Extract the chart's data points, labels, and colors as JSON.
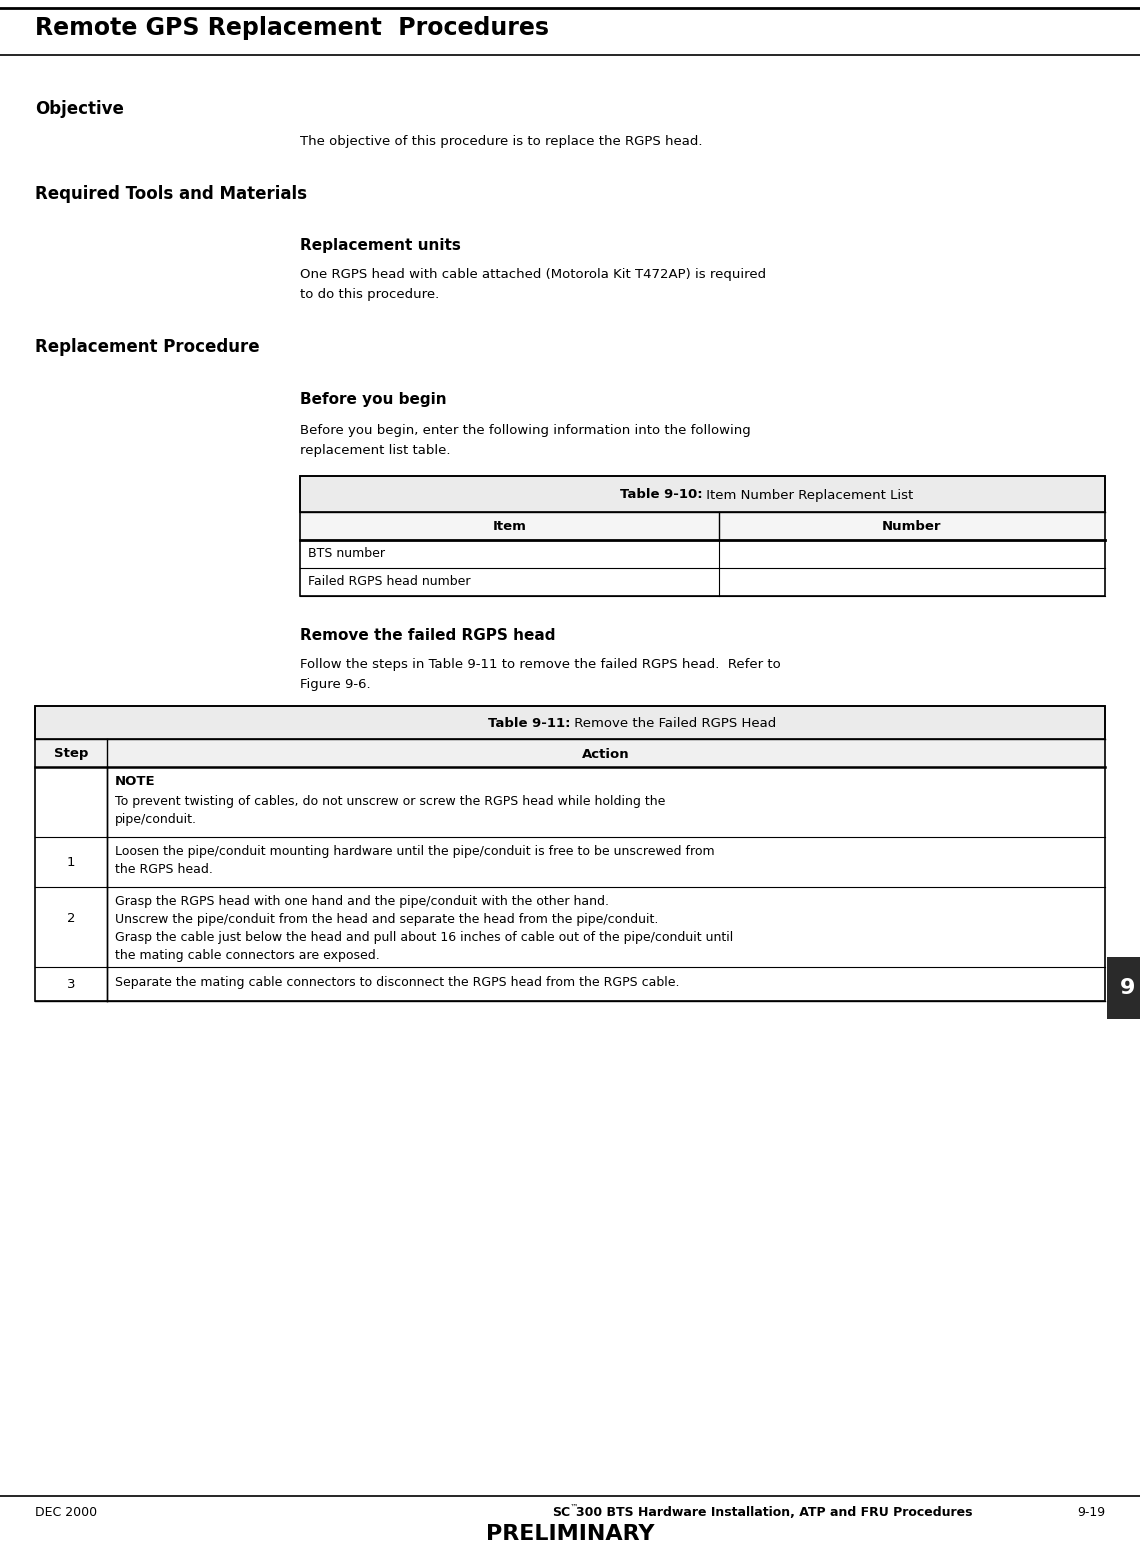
{
  "page_title": "Remote GPS Replacement  Procedures",
  "section1_label": "Objective",
  "section1_text": "The objective of this procedure is to replace the RGPS head.",
  "section2_label": "Required Tools and Materials",
  "subsection2_title": "Replacement units",
  "subsection2_text1": "One RGPS head with cable attached (Motorola Kit T472AP) is required",
  "subsection2_text2": "to do this procedure.",
  "section3_label": "Replacement Procedure",
  "subsection3_title": "Before you begin",
  "subsection3_text1": "Before you begin, enter the following information into the following",
  "subsection3_text2": "replacement list table.",
  "table1_title_bold": "Table 9-10:",
  "table1_title_normal": " Item Number Replacement List",
  "table1_col1": "Item",
  "table1_col2": "Number",
  "table1_row1": "BTS number",
  "table1_row2": "Failed RGPS head number",
  "subsection4_title": "Remove the failed RGPS head",
  "subsection4_text1": "Follow the steps in Table 9-11 to remove the failed RGPS head.  Refer to",
  "subsection4_text2": "Figure 9-6.",
  "table2_title_bold": "Table 9-11:",
  "table2_title_normal": " Remove the Failed RGPS Head",
  "table2_col1": "Step",
  "table2_col2": "Action",
  "table2_note_header": "NOTE",
  "table2_note_line1": "To prevent twisting of cables, do not unscrew or screw the RGPS head while holding the",
  "table2_note_line2": "pipe/conduit.",
  "table2_row1_step": "1",
  "table2_row1_line1": "Loosen the pipe/conduit mounting hardware until the pipe/conduit is free to be unscrewed from",
  "table2_row1_line2": "the RGPS head.",
  "table2_row2_step": "2",
  "table2_row2_line1": "Grasp the RGPS head with one hand and the pipe/conduit with the other hand.",
  "table2_row2_line2": "Unscrew the pipe/conduit from the head and separate the head from the pipe/conduit.",
  "table2_row2_line3": "Grasp the cable just below the head and pull about 16 inches of cable out of the pipe/conduit until",
  "table2_row2_line4": "the mating cable connectors are exposed.",
  "table2_row3_step": "3",
  "table2_row3_text": "Separate the mating cable connectors to disconnect the RGPS head from the RGPS cable.",
  "footer_left": "DEC 2000",
  "footer_center_bold": "SC",
  "footer_center_tm": "™",
  "footer_center_normal": "300 BTS Hardware Installation, ATP and FRU Procedures",
  "footer_center_prelim": "PRELIMINARY",
  "footer_right": "9-19",
  "page_num_label": "9",
  "bg_color": "#ffffff"
}
